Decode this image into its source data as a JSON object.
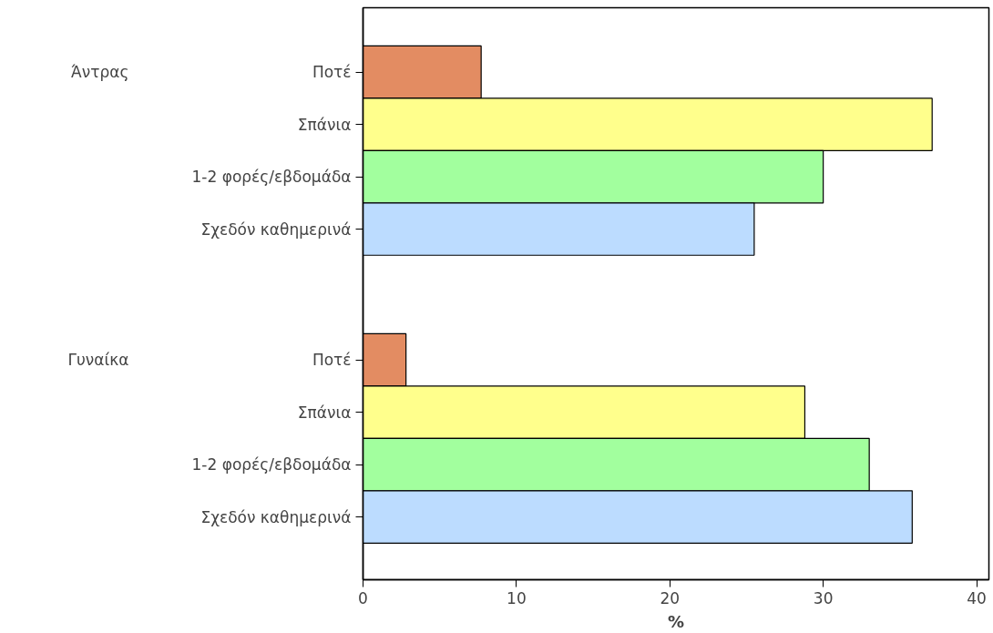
{
  "chart_data": {
    "type": "bar",
    "orientation": "horizontal",
    "xlabel": "%",
    "categories": [
      "Ποτέ",
      "Σπάνια",
      "1-2 φορές/εβδομάδα",
      "Σχεδόν καθημερινά",
      "Ποτέ",
      "Σπάνια",
      "1-2 φορές/εβδομάδα",
      "Σχεδόν καθημερινά"
    ],
    "values": [
      7.7,
      37.1,
      30.0,
      25.5,
      2.8,
      28.8,
      33.0,
      35.8
    ],
    "colors": [
      "#e38c62",
      "#ffff8c",
      "#a2ff9e",
      "#bcdcff",
      "#e38c62",
      "#ffff8c",
      "#a2ff9e",
      "#bcdcff"
    ],
    "annotations": [
      "Άντρας",
      "Γυναίκα"
    ],
    "xlim": [
      0,
      40.8
    ],
    "xticks": [
      0,
      10,
      20,
      30,
      40
    ],
    "grid": false
  }
}
